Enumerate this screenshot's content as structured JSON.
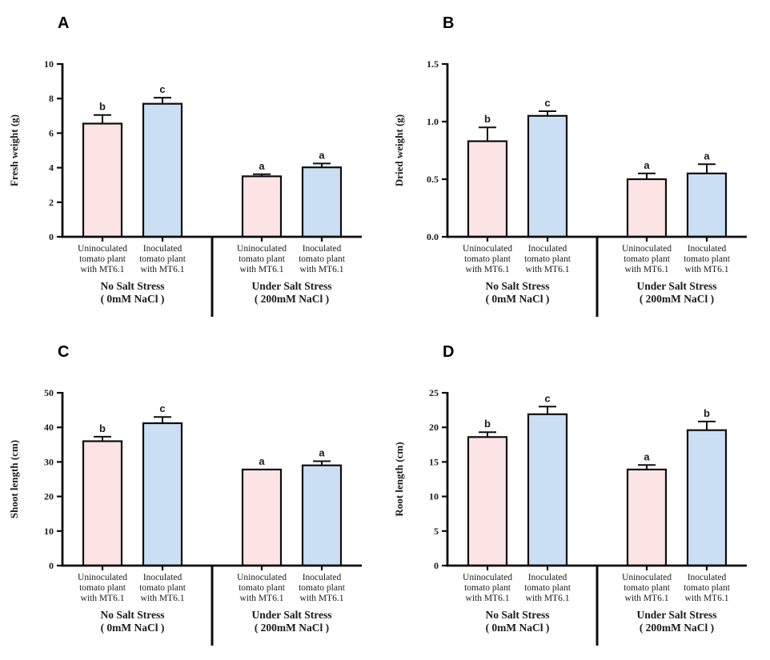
{
  "figure": {
    "background": "#ffffff",
    "colors": {
      "pink_bar": "#fce4e4",
      "blue_bar": "#cbdff4",
      "bar_border": "#0d0d0d",
      "axis": "#0d0d0d",
      "text": "#1a1a1a",
      "panel_letter": "#000000"
    }
  },
  "chart_data": [
    {
      "panel": "A",
      "type": "bar",
      "ylabel": "Fresh weight (g)",
      "ylim": [
        0,
        10
      ],
      "yticks": [
        0,
        2,
        4,
        6,
        8,
        10
      ],
      "ytick_labels": [
        "0",
        "2",
        "4",
        "6",
        "8",
        "10"
      ],
      "grid": "off",
      "legend": "none",
      "categories": [
        [
          "Uninoculated",
          "tomato plant",
          "with MT6.1"
        ],
        [
          "Inoculated",
          "tomato plant",
          "with MT6.1"
        ],
        [
          "Uninoculated",
          "tomato plant",
          "with MT6.1"
        ],
        [
          "Inoculated",
          "tomato plant",
          "with MT6.1"
        ]
      ],
      "bar_fill_keys": [
        "pink_bar",
        "blue_bar",
        "pink_bar",
        "blue_bar"
      ],
      "values": [
        6.55,
        7.7,
        3.5,
        4.02
      ],
      "errors": [
        0.5,
        0.35,
        0.12,
        0.22
      ],
      "sig_letters": [
        "b",
        "c",
        "a",
        "a"
      ],
      "groups": [
        {
          "lines": [
            "No Salt Stress",
            "( 0mM NaCl )"
          ]
        },
        {
          "lines": [
            "Under Salt Stress",
            "( 200mM NaCl )"
          ]
        }
      ]
    },
    {
      "panel": "B",
      "type": "bar",
      "ylabel": "Dried weight (g)",
      "ylim": [
        0,
        1.5
      ],
      "yticks": [
        0,
        0.5,
        1.0,
        1.5
      ],
      "ytick_labels": [
        "0.0",
        "0.5",
        "1.0",
        "1.5"
      ],
      "grid": "off",
      "legend": "none",
      "categories": [
        [
          "Uninoculated",
          "tomato plant",
          "with MT6.1"
        ],
        [
          "Inoculated",
          "tomato plant",
          "with MT6.1"
        ],
        [
          "Uninoculated",
          "tomato plant",
          "with MT6.1"
        ],
        [
          "Inoculated",
          "tomato plant",
          "with MT6.1"
        ]
      ],
      "bar_fill_keys": [
        "pink_bar",
        "blue_bar",
        "pink_bar",
        "blue_bar"
      ],
      "values": [
        0.83,
        1.05,
        0.5,
        0.55
      ],
      "errors": [
        0.12,
        0.04,
        0.05,
        0.08
      ],
      "sig_letters": [
        "b",
        "c",
        "a",
        "a"
      ],
      "groups": [
        {
          "lines": [
            "No Salt Stress",
            "( 0mM NaCl )"
          ]
        },
        {
          "lines": [
            "Under Salt Stress",
            "( 200mM NaCl )"
          ]
        }
      ]
    },
    {
      "panel": "C",
      "type": "bar",
      "ylabel": "Shoot length (cm)",
      "ylim": [
        0,
        50
      ],
      "yticks": [
        0,
        10,
        20,
        30,
        40,
        50
      ],
      "ytick_labels": [
        "0",
        "10",
        "20",
        "30",
        "40",
        "50"
      ],
      "grid": "off",
      "legend": "none",
      "categories": [
        [
          "Uninoculated",
          "tomato plant",
          "with MT6.1"
        ],
        [
          "Inoculated",
          "tomato plant",
          "with MT6.1"
        ],
        [
          "Uninoculated",
          "tomato plant",
          "with MT6.1"
        ],
        [
          "Inoculated",
          "tomato plant",
          "with MT6.1"
        ]
      ],
      "bar_fill_keys": [
        "pink_bar",
        "blue_bar",
        "pink_bar",
        "blue_bar"
      ],
      "values": [
        36,
        41.2,
        27.8,
        29
      ],
      "errors": [
        1.3,
        1.8,
        0,
        1.2
      ],
      "sig_letters": [
        "b",
        "c",
        "a",
        "a"
      ],
      "groups": [
        {
          "lines": [
            "No Salt Stress",
            "( 0mM NaCl )"
          ]
        },
        {
          "lines": [
            "Under Salt Stress",
            "( 200mM NaCl )"
          ]
        }
      ]
    },
    {
      "panel": "D",
      "type": "bar",
      "ylabel": "Root length (cm)",
      "ylim": [
        0,
        25
      ],
      "yticks": [
        0,
        5,
        10,
        15,
        20,
        25
      ],
      "ytick_labels": [
        "0",
        "5",
        "10",
        "15",
        "20",
        "25"
      ],
      "grid": "off",
      "legend": "none",
      "categories": [
        [
          "Uninoculated",
          "tomato plant",
          "with MT6.1"
        ],
        [
          "Inoculated",
          "tomato plant",
          "with MT6.1"
        ],
        [
          "Uninoculated",
          "tomato plant",
          "with MT6.1"
        ],
        [
          "Inoculated",
          "tomato plant",
          "with MT6.1"
        ]
      ],
      "bar_fill_keys": [
        "pink_bar",
        "blue_bar",
        "pink_bar",
        "blue_bar"
      ],
      "values": [
        18.6,
        21.9,
        13.9,
        19.6
      ],
      "errors": [
        0.7,
        1.1,
        0.65,
        1.25
      ],
      "sig_letters": [
        "b",
        "c",
        "a",
        "b"
      ],
      "groups": [
        {
          "lines": [
            "No Salt Stress",
            "( 0mM NaCl )"
          ]
        },
        {
          "lines": [
            "Under Salt Stress",
            "( 200mM NaCl )"
          ]
        }
      ]
    }
  ]
}
